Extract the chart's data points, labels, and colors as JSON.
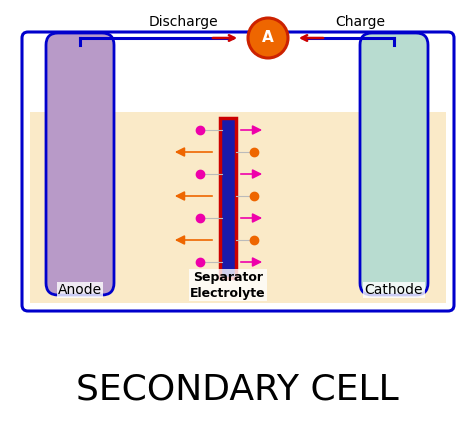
{
  "title": "SECONDARY CELL",
  "title_fontsize": 26,
  "title_color": "#000000",
  "bg_color": "#ffffff",
  "tank_bg": "#faeac8",
  "tank_border": "#0000cc",
  "tank_border_lw": 2.2,
  "anode_color": "#b89ac8",
  "anode_border": "#0000cc",
  "cathode_color": "#b8dcd0",
  "cathode_border": "#0000cc",
  "separator_fill": "#1a1aaa",
  "separator_border": "#cc0000",
  "ammeter_fill": "#ee6600",
  "ammeter_border": "#cc2200",
  "wire_color": "#0000cc",
  "label_color": "#000000",
  "label_fontsize": 10,
  "ion_magenta": "#ee00aa",
  "ion_orange": "#ee6600",
  "arrow_magenta": "#ee00aa",
  "arrow_orange": "#ee6600",
  "discharge_label": "Discharge",
  "charge_label": "Charge",
  "anode_label": "Anode",
  "separator_label": "Separator\nElectrolyte",
  "cathode_label": "Cathode"
}
